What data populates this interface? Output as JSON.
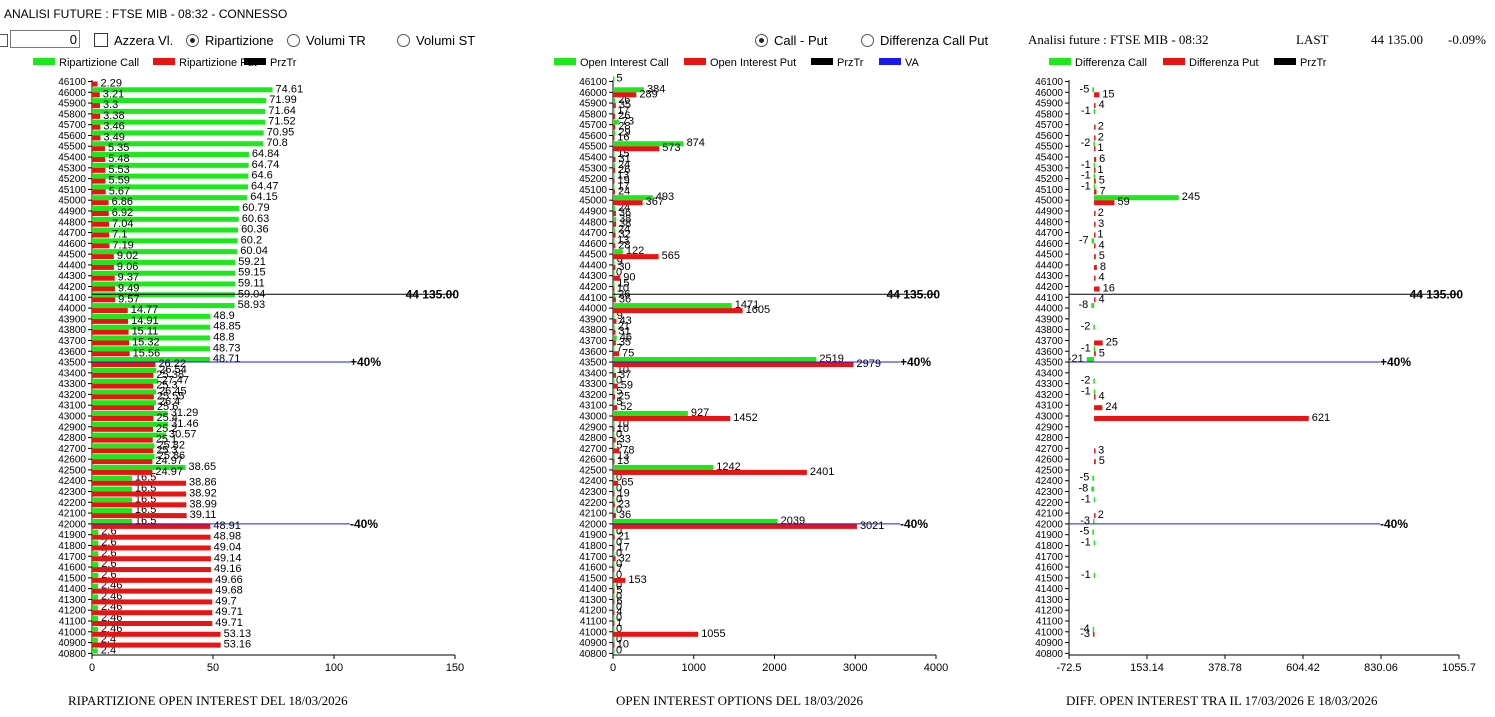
{
  "window": {
    "title": "ANALISI FUTURE : FTSE MIB - 08:32 - CONNESSO"
  },
  "controls": {
    "number_value": "0",
    "azzera_label": "Azzera Vl.",
    "radio_ripartizione": "Ripartizione",
    "radio_volumi_tr": "Volumi TR",
    "radio_volumi_st": "Volumi ST",
    "radio_call_put": "Call - Put",
    "radio_diff_call_put": "Differenza Call Put"
  },
  "header": {
    "analysis_label": "Analisi future : FTSE MIB - 08:32",
    "last_label": "LAST",
    "last_value": "44 135.00",
    "change_value": "-0.09%"
  },
  "colors": {
    "green": "#1ce81c",
    "red": "#e81414",
    "black": "#000000",
    "blue": "#1a1aee"
  },
  "chart_data": [
    {
      "type": "bar",
      "orientation": "horizontal",
      "title": "RIPARTIZIONE OPEN INTEREST DEL 18/03/2026",
      "categories": [
        "46100",
        "46000",
        "45900",
        "45800",
        "45700",
        "45600",
        "45500",
        "45400",
        "45300",
        "45200",
        "45100",
        "45000",
        "44900",
        "44800",
        "44700",
        "44600",
        "44500",
        "44400",
        "44300",
        "44200",
        "44100",
        "44000",
        "43900",
        "43800",
        "43700",
        "43600",
        "43500",
        "43400",
        "43300",
        "43200",
        "43100",
        "43000",
        "42900",
        "42800",
        "42700",
        "42600",
        "42500",
        "42400",
        "42300",
        "42200",
        "42100",
        "42000",
        "41900",
        "41800",
        "41700",
        "41600",
        "41500",
        "41400",
        "41300",
        "41200",
        "41100",
        "41000",
        "40900",
        "40800"
      ],
      "legend": [
        "Ripartizione Call",
        "Ripartizione Put",
        "PrzTr"
      ],
      "series": [
        {
          "name": "Ripartizione Call",
          "values": [
            null,
            74.61,
            71.99,
            71.64,
            71.52,
            70.95,
            70.8,
            64.84,
            64.74,
            64.6,
            64.47,
            64.15,
            60.79,
            60.63,
            60.36,
            60.2,
            60.04,
            59.21,
            59.15,
            59.11,
            59.04,
            58.93,
            48.9,
            48.85,
            48.8,
            48.73,
            48.71,
            26.54,
            27.47,
            26.45,
            26.4,
            31.29,
            31.46,
            30.57,
            25.82,
            25.86,
            38.65,
            16.5,
            16.5,
            16.5,
            16.5,
            16.5,
            2.6,
            2.6,
            2.6,
            2.6,
            2.6,
            2.46,
            2.46,
            2.46,
            2.46,
            2.46,
            2.4,
            2.4
          ]
        },
        {
          "name": "Ripartizione Put",
          "values": [
            2.29,
            3.21,
            3.3,
            3.38,
            3.46,
            3.49,
            5.35,
            5.48,
            5.53,
            5.59,
            5.67,
            6.86,
            6.92,
            7.04,
            7.1,
            7.19,
            9.02,
            9.06,
            9.37,
            9.49,
            9.57,
            14.77,
            14.91,
            15.11,
            15.32,
            15.56,
            26.22,
            25.38,
            25.3,
            25.55,
            25.6,
            25.4,
            25.2,
            25.1,
            25.3,
            24.97,
            24.97,
            38.86,
            38.92,
            38.99,
            39.11,
            48.91,
            48.98,
            49.04,
            49.14,
            49.16,
            49.66,
            49.68,
            49.7,
            49.71,
            49.71,
            53.13,
            53.16,
            null
          ]
        }
      ],
      "price_line": {
        "strike": "44100",
        "label": "44 135.00"
      },
      "va_lines": [
        {
          "strike": "43500",
          "label": "+40%"
        },
        {
          "strike": "42000",
          "label": "-40%"
        }
      ],
      "xlim": [
        0,
        150
      ],
      "xticks": [
        0,
        50,
        100,
        150
      ]
    },
    {
      "type": "bar",
      "orientation": "horizontal",
      "title": "OPEN INTEREST OPTIONS DEL 18/03/2026",
      "categories": [
        "46100",
        "46000",
        "45900",
        "45800",
        "45700",
        "45600",
        "45500",
        "45400",
        "45300",
        "45200",
        "45100",
        "45000",
        "44900",
        "44800",
        "44700",
        "44600",
        "44500",
        "44400",
        "44300",
        "44200",
        "44100",
        "44000",
        "43900",
        "43800",
        "43700",
        "43600",
        "43500",
        "43400",
        "43300",
        "43200",
        "43100",
        "43000",
        "42900",
        "42800",
        "42700",
        "42600",
        "42500",
        "42400",
        "42300",
        "42200",
        "42100",
        "42000",
        "41900",
        "41800",
        "41700",
        "41600",
        "41500",
        "41400",
        "41300",
        "41200",
        "41100",
        "41000",
        "40900",
        "40800"
      ],
      "legend": [
        "Open Interest Call",
        "Open Interest Put",
        "PrzTr",
        "VA"
      ],
      "series": [
        {
          "name": "Open Interest Call",
          "values": [
            5,
            384,
            26,
            17,
            73,
            29,
            874,
            15,
            24,
            13,
            17,
            493,
            24,
            38,
            24,
            13,
            122,
            9,
            0,
            15,
            26,
            1471,
            9,
            21,
            46,
            7,
            2519,
            10,
            0,
            5,
            5,
            927,
            10,
            0,
            5,
            13,
            1242,
            0,
            0,
            0,
            0,
            2039,
            0,
            0,
            0,
            0,
            0,
            0,
            0,
            0,
            0,
            0,
            0,
            0
          ]
        },
        {
          "name": "Open Interest Put",
          "values": [
            null,
            289,
            35,
            26,
            28,
            16,
            573,
            31,
            26,
            19,
            24,
            367,
            36,
            38,
            32,
            28,
            565,
            30,
            90,
            10,
            36,
            1605,
            43,
            31,
            35,
            75,
            2979,
            37,
            59,
            25,
            52,
            1452,
            10,
            33,
            78,
            13,
            2401,
            65,
            19,
            23,
            36,
            3021,
            21,
            17,
            32,
            7,
            153,
            5,
            6,
            4,
            1,
            1055,
            10,
            null
          ]
        }
      ],
      "price_line": {
        "strike": "44100",
        "label": "44 135.00"
      },
      "va_lines": [
        {
          "strike": "43500",
          "label": "+40%"
        },
        {
          "strike": "42000",
          "label": "-40%"
        }
      ],
      "xlim": [
        0,
        4000
      ],
      "xticks": [
        0,
        1000,
        2000,
        3000,
        4000
      ]
    },
    {
      "type": "bar",
      "orientation": "horizontal",
      "title": "DIFF. OPEN INTEREST TRA IL 17/03/2026 E 18/03/2026",
      "categories": [
        "46100",
        "46000",
        "45900",
        "45800",
        "45700",
        "45600",
        "45500",
        "45400",
        "45300",
        "45200",
        "45100",
        "45000",
        "44900",
        "44800",
        "44700",
        "44600",
        "44500",
        "44400",
        "44300",
        "44200",
        "44100",
        "44000",
        "43900",
        "43800",
        "43700",
        "43600",
        "43500",
        "43400",
        "43300",
        "43200",
        "43100",
        "43000",
        "42900",
        "42800",
        "42700",
        "42600",
        "42500",
        "42400",
        "42300",
        "42200",
        "42100",
        "42000",
        "41900",
        "41800",
        "41700",
        "41600",
        "41500",
        "41400",
        "41300",
        "41200",
        "41100",
        "41000",
        "40900",
        "40800"
      ],
      "legend": [
        "Differenza Call",
        "Differenza Put",
        "PrzTr"
      ],
      "series": [
        {
          "name": "Differenza Call",
          "values": [
            null,
            -5,
            null,
            -1,
            null,
            null,
            -2,
            null,
            -1,
            -1,
            -1,
            245,
            null,
            null,
            null,
            -7,
            null,
            null,
            null,
            null,
            null,
            -8,
            null,
            -2,
            null,
            -1,
            -21,
            null,
            -2,
            -1,
            null,
            null,
            null,
            null,
            null,
            null,
            null,
            -5,
            -8,
            -1,
            null,
            -3,
            -5,
            -1,
            null,
            null,
            -1,
            null,
            null,
            null,
            null,
            -4,
            null,
            null
          ]
        },
        {
          "name": "Differenza Put",
          "values": [
            null,
            15,
            4,
            null,
            2,
            2,
            1,
            6,
            1,
            5,
            7,
            59,
            2,
            3,
            1,
            4,
            5,
            8,
            4,
            16,
            4,
            null,
            null,
            null,
            25,
            5,
            null,
            null,
            null,
            4,
            24,
            621,
            null,
            null,
            3,
            5,
            null,
            null,
            null,
            null,
            2,
            null,
            null,
            null,
            null,
            null,
            null,
            null,
            null,
            null,
            null,
            -3,
            null,
            null
          ]
        }
      ],
      "price_line": {
        "strike": "44100",
        "label": "44 135.00"
      },
      "va_lines": [
        {
          "strike": "43500",
          "label": "+40%"
        },
        {
          "strike": "42000",
          "label": "-40%"
        }
      ],
      "xlim": [
        -72.5,
        1055.7
      ],
      "xticks": [
        -72.5,
        153.14,
        378.78,
        604.42,
        830.06,
        1055.7
      ]
    }
  ]
}
